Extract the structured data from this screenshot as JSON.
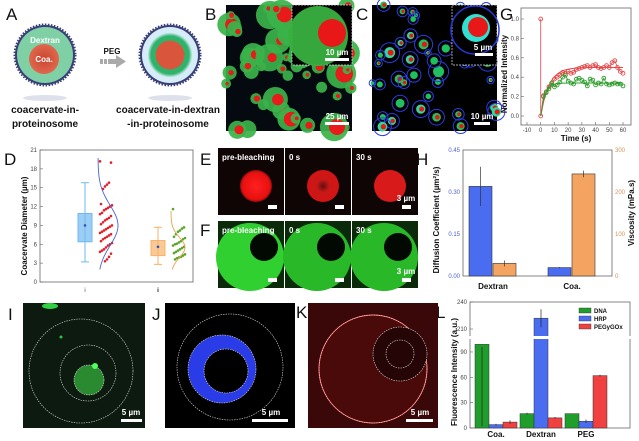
{
  "panels": {
    "A": "A",
    "B": "B",
    "C": "C",
    "D": "D",
    "E": "E",
    "F": "F",
    "G": "G",
    "H": "H",
    "I": "I",
    "J": "J",
    "K": "K",
    "L": "L"
  },
  "schematic": {
    "dextran_label": "Dextran",
    "coa_label": "Coa.",
    "arrow_label": "PEG",
    "left_caption": [
      "coacervate-in-",
      "proteinosome"
    ],
    "right_caption": [
      "coacervate-in-dextran",
      "-in-proteinosome"
    ],
    "colors": {
      "dextran": "#7fd1a5",
      "coa": "#d9553c",
      "shell": "#3a3f78",
      "outer_light": "#d6ecf7",
      "ring_green": "#2fb36a"
    }
  },
  "micrographs": {
    "B": {
      "inset_scale": "10 µm",
      "scale": "25 µm"
    },
    "C": {
      "inset_scale": "5 µm",
      "scale": "10 µm"
    },
    "E": {
      "frames": [
        "pre-bleaching",
        "0 s",
        "30 s"
      ],
      "scale": "3 µm"
    },
    "F": {
      "frames": [
        "pre-bleaching",
        "0 s",
        "30 s"
      ],
      "scale": "3 µm"
    },
    "I": {
      "scale": "5 µm"
    },
    "J": {
      "scale": "5 µm"
    },
    "K": {
      "scale": "5 µm"
    }
  },
  "chart_data": [
    {
      "id": "G",
      "type": "line",
      "xlabel": "Time (s)",
      "ylabel": "Normalized Intensity",
      "xlim": [
        -10,
        60
      ],
      "ylim": [
        0,
        1.0
      ],
      "xticks": [
        "-10",
        "0",
        "10",
        "20",
        "30",
        "40",
        "50",
        "60"
      ],
      "yticks": [
        "0.0",
        "0.2",
        "0.4",
        "0.6",
        "0.8",
        "1.0"
      ],
      "series": [
        {
          "name": "red",
          "color": "#e8474b",
          "fit_plateau": 0.5,
          "x": [
            0,
            0,
            2,
            4,
            6,
            8,
            10,
            12,
            14,
            16,
            18,
            20,
            22,
            24,
            26,
            28,
            30,
            32,
            34,
            36,
            38,
            40,
            42,
            44,
            46,
            48,
            50,
            52,
            54,
            56,
            58,
            60
          ],
          "y": [
            1.0,
            0,
            0.21,
            0.25,
            0.3,
            0.32,
            0.38,
            0.4,
            0.42,
            0.45,
            0.44,
            0.46,
            0.44,
            0.45,
            0.48,
            0.49,
            0.5,
            0.51,
            0.52,
            0.5,
            0.52,
            0.53,
            0.5,
            0.49,
            0.5,
            0.52,
            0.5,
            0.55,
            0.57,
            0.5,
            0.46,
            0.44
          ]
        },
        {
          "name": "green",
          "color": "#2e9e2e",
          "fit_plateau": 0.34,
          "x": [
            2,
            4,
            6,
            8,
            10,
            12,
            14,
            16,
            18,
            20,
            22,
            24,
            26,
            28,
            30,
            32,
            34,
            36,
            38,
            40,
            42,
            44,
            46,
            48,
            50,
            52,
            54,
            56,
            58,
            60
          ],
          "y": [
            0.2,
            0.24,
            0.28,
            0.34,
            0.3,
            0.32,
            0.35,
            0.4,
            0.42,
            0.36,
            0.34,
            0.33,
            0.38,
            0.39,
            0.37,
            0.35,
            0.31,
            0.38,
            0.37,
            0.32,
            0.34,
            0.33,
            0.39,
            0.33,
            0.32,
            0.33,
            0.34,
            0.33,
            0.33,
            0.31
          ]
        }
      ]
    },
    {
      "id": "D",
      "type": "scatter",
      "ylabel": "Coacervate Diameter (µm)",
      "ylim": [
        0,
        21
      ],
      "yticks": [
        "0",
        "3",
        "6",
        "9",
        "12",
        "15",
        "18",
        "21"
      ],
      "categories": [
        "i",
        "ii"
      ],
      "groups": [
        {
          "name": "i",
          "box_color": "#6fb9f0",
          "point_color": "#e0202a",
          "curve_color": "#4a62d8",
          "whisker_low": 3.2,
          "q1": 6.4,
          "mean": 9.0,
          "q3": 10.9,
          "whisker_high": 15.8,
          "mu": 9,
          "sigma": 3.2,
          "points": [
            19.2,
            19,
            15.8,
            15.5,
            15.2,
            14.8,
            12.4,
            12.2,
            12,
            11.8,
            11.6,
            11.4,
            11,
            10.8,
            10.5,
            10.2,
            10,
            9.8,
            9.5,
            9.2,
            9,
            8.8,
            8.6,
            8.4,
            8.2,
            8,
            7.8,
            7.6,
            7.4,
            7.2,
            7,
            6.8,
            6.5,
            6.2,
            6,
            5.8,
            5.5,
            5.2,
            5,
            4.8,
            4.5,
            4,
            3.6,
            3.3
          ]
        },
        {
          "name": "ii",
          "box_color": "#f7b36a",
          "point_color": "#5aa62a",
          "curve_color": "#e7a24e",
          "whisker_low": 2.8,
          "q1": 4.2,
          "mean": 5.6,
          "q3": 6.6,
          "whisker_high": 8.7,
          "mu": 5.5,
          "sigma": 1.6,
          "points": [
            11.6,
            8.7,
            8.5,
            8.2,
            8,
            7.6,
            7.2,
            7,
            6.8,
            6.5,
            6.3,
            6.1,
            6,
            5.8,
            5.6,
            5.4,
            5.2,
            5,
            4.8,
            4.6,
            4.4,
            4.2,
            4,
            3.9,
            3.8,
            3.6
          ]
        }
      ]
    },
    {
      "id": "H",
      "type": "bar",
      "categories": [
        "Dextran",
        "Coa."
      ],
      "ylabel": "Diffusion Coefficient (µm²/s)",
      "y2label": "Viscosity (mPa.s)",
      "ylim": [
        0,
        0.45
      ],
      "y2lim": [
        0,
        300
      ],
      "yticks": [
        "0.00",
        "0.15",
        "0.30",
        "0.45"
      ],
      "y2ticks": [
        "0",
        "100",
        "200",
        "300"
      ],
      "series": [
        {
          "name": "Diffusion Coefficient",
          "axis": "left",
          "color": "#4a6cf0",
          "values": [
            0.32,
            0.03
          ],
          "errors": [
            0.07,
            0.002
          ]
        },
        {
          "name": "Viscosity",
          "axis": "right",
          "color": "#f4a460",
          "values": [
            30,
            243
          ],
          "errors": [
            7,
            8
          ]
        }
      ],
      "left_axis_color": "#4a5fd0",
      "right_axis_color": "#d4935a"
    },
    {
      "id": "L",
      "type": "bar",
      "categories": [
        "Coa.",
        "Dextran",
        "PEG"
      ],
      "ylabel": "Fluorescence Intensity (a.u.)",
      "ylim": [
        0,
        240
      ],
      "axis_break": [
        100,
        200
      ],
      "yticks": [
        "0",
        "30",
        "60",
        "90",
        "210",
        "240"
      ],
      "legend_position": "top-right",
      "series": [
        {
          "name": "DNA",
          "color": "#1f9e2c",
          "values": [
            99,
            17,
            17
          ],
          "errors": [
            3,
            1,
            0
          ]
        },
        {
          "name": "HRP",
          "color": "#4a6cf0",
          "values": [
            4,
            222,
            8
          ],
          "errors": [
            1,
            10,
            2
          ]
        },
        {
          "name": "PEGyGOx",
          "color": "#f04040",
          "values": [
            7,
            12,
            62
          ],
          "errors": [
            2,
            1,
            1
          ]
        }
      ]
    }
  ]
}
